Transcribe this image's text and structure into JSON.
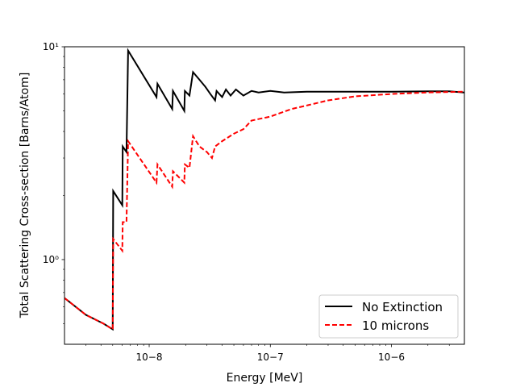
{
  "chart_data": {
    "type": "line",
    "title": "",
    "xlabel": "Energy [MeV]",
    "ylabel": "Total Scattering Cross-section [Barns/Atom]",
    "xscale": "log",
    "yscale": "log",
    "xlim": [
      2e-09,
      4e-06
    ],
    "ylim": [
      0.4,
      10
    ],
    "grid": false,
    "legend_position": "lower right",
    "x_ticks": [
      {
        "value": 1e-08,
        "label": "10−8"
      },
      {
        "value": 1e-07,
        "label": "10−7"
      },
      {
        "value": 1e-06,
        "label": "10−6"
      }
    ],
    "y_ticks": [
      {
        "value": 1,
        "label": "10⁰"
      },
      {
        "value": 10,
        "label": "10¹"
      }
    ],
    "series": [
      {
        "name": "No Extinction",
        "color": "#000000",
        "dash": "solid",
        "points": [
          [
            2e-09,
            0.66
          ],
          [
            3e-09,
            0.55
          ],
          [
            4.2e-09,
            0.5
          ],
          [
            5e-09,
            0.47
          ],
          [
            5.05e-09,
            2.1
          ],
          [
            6e-09,
            1.8
          ],
          [
            6.05e-09,
            3.4
          ],
          [
            6.5e-09,
            3.2
          ],
          [
            6.7e-09,
            9.6
          ],
          [
            1.15e-08,
            5.8
          ],
          [
            1.17e-08,
            6.7
          ],
          [
            1.55e-08,
            5.1
          ],
          [
            1.57e-08,
            6.2
          ],
          [
            1.95e-08,
            5.0
          ],
          [
            1.97e-08,
            6.2
          ],
          [
            2.15e-08,
            5.9
          ],
          [
            2.3e-08,
            7.6
          ],
          [
            2.6e-08,
            7.0
          ],
          [
            2.9e-08,
            6.5
          ],
          [
            3.2e-08,
            6.0
          ],
          [
            3.5e-08,
            5.6
          ],
          [
            3.6e-08,
            6.2
          ],
          [
            4e-08,
            5.8
          ],
          [
            4.3e-08,
            6.3
          ],
          [
            4.7e-08,
            5.9
          ],
          [
            5.2e-08,
            6.3
          ],
          [
            6e-08,
            5.9
          ],
          [
            7e-08,
            6.2
          ],
          [
            8e-08,
            6.1
          ],
          [
            1e-07,
            6.2
          ],
          [
            1.3e-07,
            6.1
          ],
          [
            2e-07,
            6.15
          ],
          [
            5e-07,
            6.15
          ],
          [
            1e-06,
            6.15
          ],
          [
            2e-06,
            6.18
          ],
          [
            3e-06,
            6.18
          ],
          [
            4e-06,
            6.1
          ]
        ]
      },
      {
        "name": "10 microns",
        "color": "#ff0000",
        "dash": "dashed",
        "points": [
          [
            2e-09,
            0.66
          ],
          [
            3e-09,
            0.55
          ],
          [
            4.2e-09,
            0.5
          ],
          [
            5e-09,
            0.47
          ],
          [
            5.05e-09,
            1.25
          ],
          [
            6e-09,
            1.1
          ],
          [
            6.05e-09,
            1.5
          ],
          [
            6.5e-09,
            1.5
          ],
          [
            6.7e-09,
            3.6
          ],
          [
            1.15e-08,
            2.3
          ],
          [
            1.17e-08,
            2.8
          ],
          [
            1.55e-08,
            2.2
          ],
          [
            1.57e-08,
            2.6
          ],
          [
            1.95e-08,
            2.3
          ],
          [
            1.97e-08,
            2.8
          ],
          [
            2.15e-08,
            2.7
          ],
          [
            2.3e-08,
            3.8
          ],
          [
            2.6e-08,
            3.4
          ],
          [
            3e-08,
            3.2
          ],
          [
            3.3e-08,
            3.0
          ],
          [
            3.5e-08,
            3.4
          ],
          [
            4e-08,
            3.6
          ],
          [
            5e-08,
            3.9
          ],
          [
            6e-08,
            4.1
          ],
          [
            7e-08,
            4.5
          ],
          [
            1e-07,
            4.7
          ],
          [
            1.5e-07,
            5.1
          ],
          [
            2e-07,
            5.3
          ],
          [
            3e-07,
            5.6
          ],
          [
            5e-07,
            5.85
          ],
          [
            1e-06,
            6.0
          ],
          [
            2e-06,
            6.1
          ],
          [
            4e-06,
            6.15
          ]
        ]
      }
    ]
  }
}
